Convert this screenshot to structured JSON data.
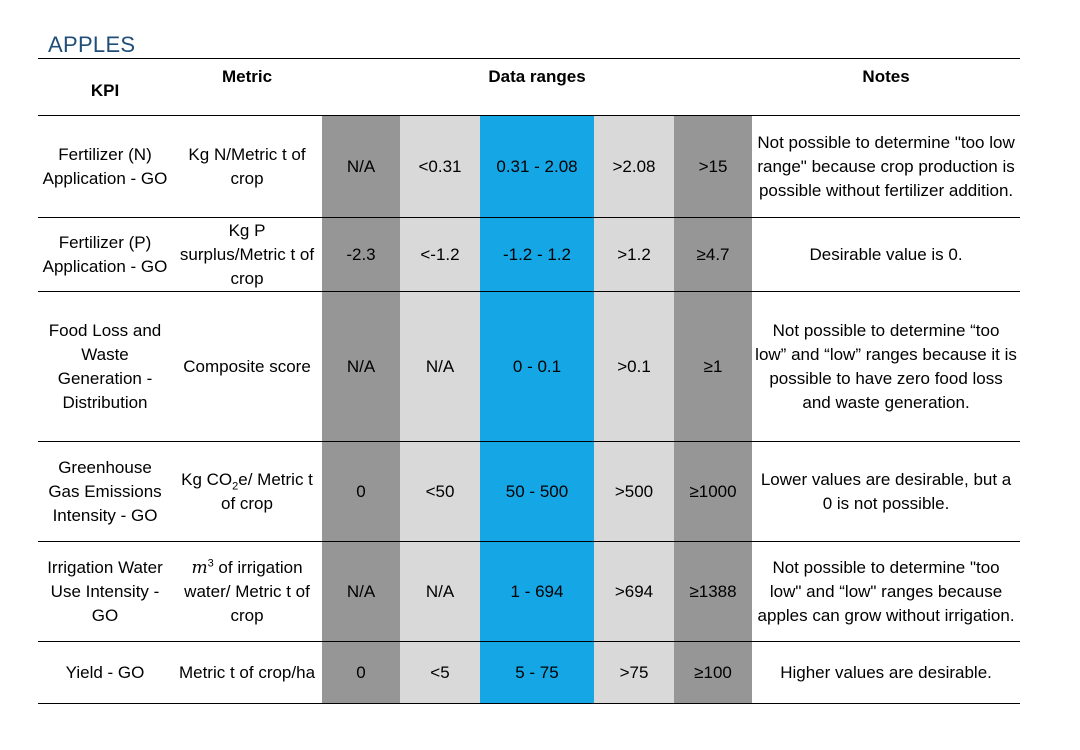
{
  "title": "APPLES",
  "headers": {
    "kpi": "KPI",
    "metric": "Metric",
    "ranges": "Data ranges",
    "notes": "Notes"
  },
  "rows": [
    {
      "kpi": "Fertilizer (N) Application - GO",
      "metric": "Kg N/Metric t of crop",
      "ranges": [
        "N/A",
        "<0.31",
        "0.31 - 2.08",
        ">2.08",
        ">15"
      ],
      "notes": "Not possible to determine \"too low range\" because crop production is possible without fertilizer addition."
    },
    {
      "kpi": "Fertilizer (P) Application - GO",
      "metric": "Kg P surplus/Metric t of crop",
      "ranges": [
        "-2.3",
        "<-1.2",
        "-1.2 - 1.2",
        ">1.2",
        "≥4.7"
      ],
      "notes": "Desirable value is 0."
    },
    {
      "kpi": "Food Loss and Waste Generation - Distribution",
      "metric": "Composite score",
      "ranges": [
        "N/A",
        "N/A",
        "0 - 0.1",
        ">0.1",
        "≥1"
      ],
      "notes": "Not possible to determine “too low” and “low” ranges because it is possible to have zero food loss and waste generation."
    },
    {
      "kpi": "Greenhouse Gas Emissions Intensity - GO",
      "metric_parts": [
        "Kg CO",
        "2",
        "e/ Metric t of crop"
      ],
      "ranges": [
        "0",
        "<50",
        "50 - 500",
        ">500",
        "≥1000"
      ],
      "notes": "Lower values are desirable, but a 0 is not possible."
    },
    {
      "kpi": "Irrigation Water Use Intensity - GO",
      "metric_parts": [
        "m",
        "3",
        " of irrigation water/ Metric t of crop"
      ],
      "ranges": [
        "N/A",
        "N/A",
        "1 - 694",
        ">694",
        "≥1388"
      ],
      "notes": "Not possible to determine \"too low\" and “low\" ranges because apples can grow without irrigation."
    },
    {
      "kpi": "Yield - GO",
      "metric": "Metric t of crop/ha",
      "ranges": [
        "0",
        "<5",
        "5 - 75",
        ">75",
        "≥100"
      ],
      "notes": "Higher values are desirable."
    }
  ],
  "colors": {
    "dark_gray": "#969696",
    "light_gray": "#d9d9d9",
    "blue": "#15a6e6",
    "title": "#1f4e79"
  }
}
